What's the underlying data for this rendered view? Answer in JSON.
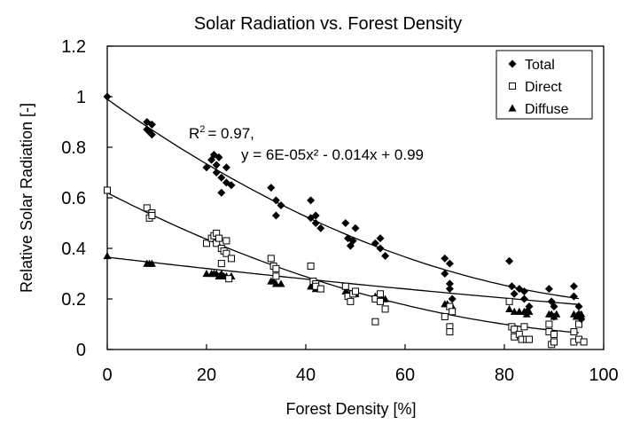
{
  "chart_data": {
    "type": "scatter",
    "title": "Solar Radiation vs. Forest Density",
    "xlabel": "Forest Density [%]",
    "ylabel": "Relative Solar Radiation [-]",
    "xlim": [
      0,
      100
    ],
    "ylim": [
      0,
      1.2
    ],
    "x_ticks": [
      "0",
      "20",
      "40",
      "60",
      "80",
      "100"
    ],
    "y_ticks": [
      "0",
      "0.2",
      "0.4",
      "0.6",
      "0.8",
      "1",
      "1.2"
    ],
    "grid": false,
    "legend_position": "top-right",
    "annotation_r2": "= 0.97,",
    "annotation_eq": "y = 6E-05x² - 0.014x + 0.99",
    "series": [
      {
        "name": "Total",
        "marker": "diamond",
        "color": "#000000",
        "points": [
          [
            0,
            1.0
          ],
          [
            8,
            0.9
          ],
          [
            8,
            0.87
          ],
          [
            8.5,
            0.86
          ],
          [
            9,
            0.89
          ],
          [
            9,
            0.85
          ],
          [
            20,
            0.72
          ],
          [
            21,
            0.75
          ],
          [
            21.5,
            0.77
          ],
          [
            22,
            0.73
          ],
          [
            22,
            0.7
          ],
          [
            22.5,
            0.76
          ],
          [
            23,
            0.62
          ],
          [
            23,
            0.68
          ],
          [
            24,
            0.72
          ],
          [
            24,
            0.66
          ],
          [
            25,
            0.65
          ],
          [
            33,
            0.64
          ],
          [
            34,
            0.59
          ],
          [
            34,
            0.53
          ],
          [
            35,
            0.57
          ],
          [
            41,
            0.59
          ],
          [
            41,
            0.52
          ],
          [
            42,
            0.5
          ],
          [
            43,
            0.48
          ],
          [
            42,
            0.53
          ],
          [
            48,
            0.5
          ],
          [
            48.5,
            0.44
          ],
          [
            49,
            0.41
          ],
          [
            49.5,
            0.43
          ],
          [
            50,
            0.48
          ],
          [
            54,
            0.42
          ],
          [
            55,
            0.4
          ],
          [
            55,
            0.44
          ],
          [
            56,
            0.37
          ],
          [
            68,
            0.36
          ],
          [
            68,
            0.3
          ],
          [
            69,
            0.34
          ],
          [
            69,
            0.24
          ],
          [
            69,
            0.26
          ],
          [
            69.5,
            0.2
          ],
          [
            81,
            0.35
          ],
          [
            81.5,
            0.25
          ],
          [
            82,
            0.22
          ],
          [
            83,
            0.24
          ],
          [
            84,
            0.23
          ],
          [
            84,
            0.2
          ],
          [
            85,
            0.17
          ],
          [
            84.5,
            0.15
          ],
          [
            89,
            0.24
          ],
          [
            89.5,
            0.19
          ],
          [
            90,
            0.17
          ],
          [
            90,
            0.13
          ],
          [
            94,
            0.25
          ],
          [
            94,
            0.21
          ],
          [
            95,
            0.17
          ],
          [
            95,
            0.14
          ],
          [
            95.5,
            0.12
          ]
        ]
      },
      {
        "name": "Direct",
        "marker": "square-open",
        "color": "#000000",
        "points": [
          [
            0,
            0.63
          ],
          [
            8,
            0.56
          ],
          [
            8.5,
            0.52
          ],
          [
            9,
            0.54
          ],
          [
            9,
            0.53
          ],
          [
            20,
            0.42
          ],
          [
            21,
            0.44
          ],
          [
            21.5,
            0.45
          ],
          [
            22,
            0.46
          ],
          [
            22,
            0.42
          ],
          [
            22.5,
            0.44
          ],
          [
            23,
            0.4
          ],
          [
            23,
            0.34
          ],
          [
            23.5,
            0.39
          ],
          [
            24,
            0.43
          ],
          [
            24,
            0.38
          ],
          [
            25,
            0.36
          ],
          [
            24.5,
            0.28
          ],
          [
            33,
            0.36
          ],
          [
            33.5,
            0.33
          ],
          [
            34,
            0.32
          ],
          [
            34,
            0.29
          ],
          [
            41,
            0.33
          ],
          [
            41.5,
            0.27
          ],
          [
            42,
            0.26
          ],
          [
            42,
            0.25
          ],
          [
            43,
            0.24
          ],
          [
            48,
            0.25
          ],
          [
            48.5,
            0.21
          ],
          [
            49,
            0.19
          ],
          [
            49.5,
            0.22
          ],
          [
            50,
            0.23
          ],
          [
            54,
            0.2
          ],
          [
            54,
            0.11
          ],
          [
            55,
            0.19
          ],
          [
            55,
            0.22
          ],
          [
            56,
            0.16
          ],
          [
            68,
            0.13
          ],
          [
            69,
            0.09
          ],
          [
            69,
            0.07
          ],
          [
            69,
            0.17
          ],
          [
            69.5,
            0.15
          ],
          [
            81,
            0.19
          ],
          [
            81.5,
            0.09
          ],
          [
            82,
            0.08
          ],
          [
            82,
            0.05
          ],
          [
            83,
            0.06
          ],
          [
            83.5,
            0.04
          ],
          [
            84,
            0.09
          ],
          [
            84.5,
            0.04
          ],
          [
            85,
            0.04
          ],
          [
            89,
            0.1
          ],
          [
            89,
            0.07
          ],
          [
            89.5,
            0.02
          ],
          [
            90,
            0.03
          ],
          [
            90,
            0.06
          ],
          [
            94,
            0.07
          ],
          [
            94,
            0.03
          ],
          [
            95,
            0.1
          ],
          [
            95,
            0.04
          ],
          [
            96,
            0.03
          ]
        ]
      },
      {
        "name": "Diffuse",
        "marker": "triangle",
        "color": "#000000",
        "points": [
          [
            0,
            0.37
          ],
          [
            8,
            0.34
          ],
          [
            8.5,
            0.34
          ],
          [
            9,
            0.34
          ],
          [
            20,
            0.3
          ],
          [
            21,
            0.3
          ],
          [
            21.5,
            0.3
          ],
          [
            22,
            0.3
          ],
          [
            22.5,
            0.29
          ],
          [
            23,
            0.3
          ],
          [
            23.5,
            0.29
          ],
          [
            24,
            0.29
          ],
          [
            25,
            0.29
          ],
          [
            33,
            0.27
          ],
          [
            33.5,
            0.27
          ],
          [
            34,
            0.26
          ],
          [
            35,
            0.26
          ],
          [
            41,
            0.25
          ],
          [
            41.5,
            0.25
          ],
          [
            42,
            0.24
          ],
          [
            43,
            0.24
          ],
          [
            48,
            0.23
          ],
          [
            48.5,
            0.22
          ],
          [
            49,
            0.22
          ],
          [
            50,
            0.22
          ],
          [
            54,
            0.21
          ],
          [
            55,
            0.21
          ],
          [
            55.5,
            0.2
          ],
          [
            56,
            0.2
          ],
          [
            68,
            0.18
          ],
          [
            68.5,
            0.18
          ],
          [
            69,
            0.17
          ],
          [
            69.5,
            0.17
          ],
          [
            81,
            0.16
          ],
          [
            82,
            0.15
          ],
          [
            83,
            0.15
          ],
          [
            84,
            0.15
          ],
          [
            84.5,
            0.14
          ],
          [
            85,
            0.15
          ],
          [
            89,
            0.14
          ],
          [
            89.5,
            0.14
          ],
          [
            90,
            0.13
          ],
          [
            90.5,
            0.14
          ],
          [
            94,
            0.14
          ],
          [
            94.5,
            0.13
          ],
          [
            95,
            0.13
          ],
          [
            95.5,
            0.14
          ]
        ]
      }
    ],
    "trendlines": [
      {
        "series": "Total",
        "a": 6e-05,
        "b": -0.014,
        "c": 0.99
      },
      {
        "series": "Direct",
        "a": 4.5e-05,
        "b": -0.0101,
        "c": 0.62
      },
      {
        "series": "Diffuse",
        "a": 3.5e-06,
        "b": -0.0023,
        "c": 0.365
      }
    ]
  }
}
